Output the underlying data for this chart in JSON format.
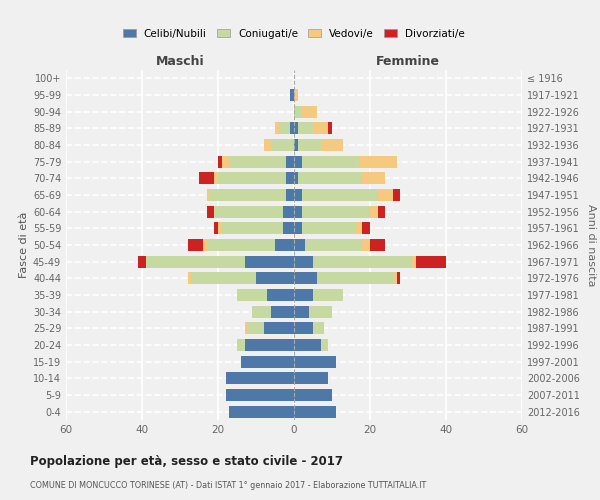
{
  "age_groups": [
    "0-4",
    "5-9",
    "10-14",
    "15-19",
    "20-24",
    "25-29",
    "30-34",
    "35-39",
    "40-44",
    "45-49",
    "50-54",
    "55-59",
    "60-64",
    "65-69",
    "70-74",
    "75-79",
    "80-84",
    "85-89",
    "90-94",
    "95-99",
    "100+"
  ],
  "birth_years": [
    "2012-2016",
    "2007-2011",
    "2002-2006",
    "1997-2001",
    "1992-1996",
    "1987-1991",
    "1982-1986",
    "1977-1981",
    "1972-1976",
    "1967-1971",
    "1962-1966",
    "1957-1961",
    "1952-1956",
    "1947-1951",
    "1942-1946",
    "1937-1941",
    "1932-1936",
    "1927-1931",
    "1922-1926",
    "1917-1921",
    "≤ 1916"
  ],
  "maschi": {
    "celibi": [
      17,
      18,
      18,
      14,
      13,
      8,
      6,
      7,
      10,
      13,
      5,
      3,
      3,
      2,
      2,
      2,
      0,
      1,
      0,
      1,
      0
    ],
    "coniugati": [
      0,
      0,
      0,
      0,
      2,
      4,
      5,
      8,
      17,
      26,
      18,
      16,
      18,
      20,
      18,
      15,
      6,
      3,
      0,
      0,
      0
    ],
    "vedovi": [
      0,
      0,
      0,
      0,
      0,
      1,
      0,
      0,
      1,
      0,
      1,
      1,
      0,
      1,
      1,
      2,
      2,
      1,
      0,
      0,
      0
    ],
    "divorziati": [
      0,
      0,
      0,
      0,
      0,
      0,
      0,
      0,
      0,
      2,
      4,
      1,
      2,
      0,
      4,
      1,
      0,
      0,
      0,
      0,
      0
    ]
  },
  "femmine": {
    "nubili": [
      11,
      10,
      9,
      11,
      7,
      5,
      4,
      5,
      6,
      5,
      3,
      2,
      2,
      2,
      1,
      2,
      1,
      1,
      0,
      0,
      0
    ],
    "coniugate": [
      0,
      0,
      0,
      0,
      2,
      3,
      6,
      8,
      20,
      26,
      15,
      14,
      18,
      20,
      17,
      15,
      6,
      4,
      2,
      0,
      0
    ],
    "vedove": [
      0,
      0,
      0,
      0,
      0,
      0,
      0,
      0,
      1,
      1,
      2,
      2,
      2,
      4,
      6,
      10,
      6,
      4,
      4,
      1,
      0
    ],
    "divorziate": [
      0,
      0,
      0,
      0,
      0,
      0,
      0,
      0,
      1,
      8,
      4,
      2,
      2,
      2,
      0,
      0,
      0,
      1,
      0,
      0,
      0
    ]
  },
  "colors": {
    "celibi": "#4e78a8",
    "coniugati": "#c5d9a0",
    "vedovi": "#f5c97e",
    "divorziati": "#cc2222"
  },
  "title": "Popolazione per età, sesso e stato civile - 2017",
  "subtitle": "COMUNE DI MONCUCCO TORINESE (AT) - Dati ISTAT 1° gennaio 2017 - Elaborazione TUTTAITALIA.IT",
  "ylabel": "Fasce di età",
  "ylabel2": "Anni di nascita",
  "xlabel_left": "Maschi",
  "xlabel_right": "Femmine",
  "xlim": 60,
  "legend_labels": [
    "Celibi/Nubili",
    "Coniugati/e",
    "Vedovi/e",
    "Divorziati/e"
  ],
  "bg_color": "#f0f0f0"
}
